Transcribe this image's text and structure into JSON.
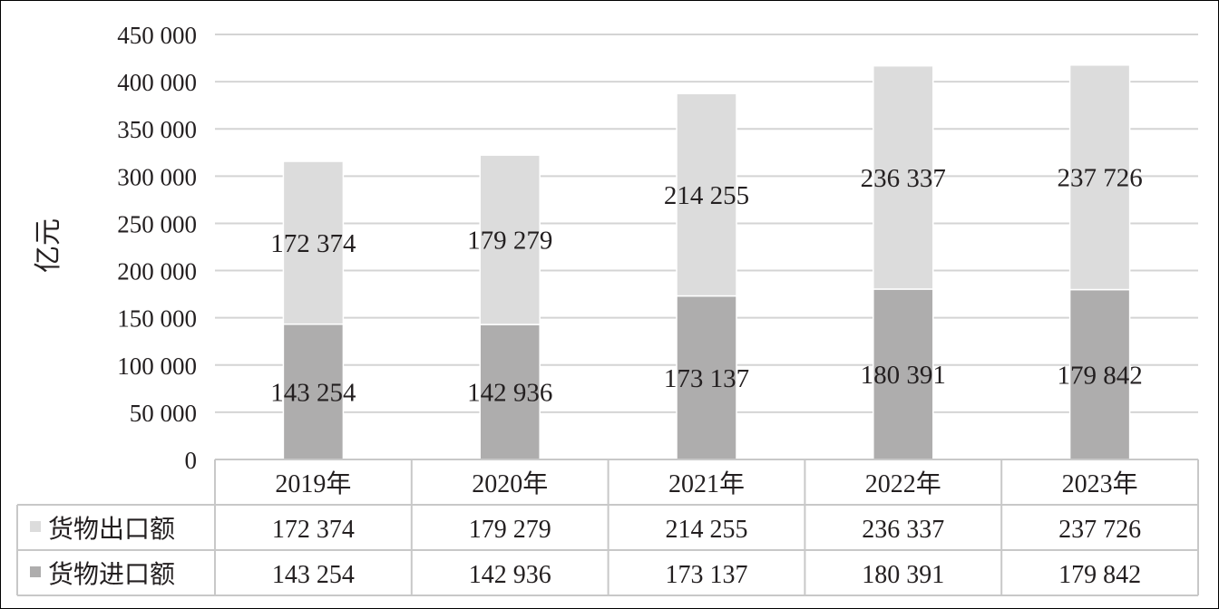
{
  "chart_data": {
    "type": "bar",
    "stacked": true,
    "ylabel": "亿元",
    "ylim": [
      0,
      450000
    ],
    "yticks": [
      0,
      50000,
      100000,
      150000,
      200000,
      250000,
      300000,
      350000,
      400000,
      450000
    ],
    "ytick_labels": [
      "0",
      "50 000",
      "100 000",
      "150 000",
      "200 000",
      "250 000",
      "300 000",
      "350 000",
      "400 000",
      "450 000"
    ],
    "categories": [
      "2019年",
      "2020年",
      "2021年",
      "2022年",
      "2023年"
    ],
    "grid": true,
    "legend": "data-table",
    "series": [
      {
        "name": "货物进口额",
        "color": "#aeadad",
        "values": [
          143254,
          142936,
          173137,
          180391,
          179842
        ],
        "labels": [
          "143 254",
          "142 936",
          "173 137",
          "180 391",
          "179 842"
        ]
      },
      {
        "name": "货物出口额",
        "color": "#dcdcdc",
        "values": [
          172374,
          179279,
          214255,
          236337,
          237726
        ],
        "labels": [
          "172 374",
          "179 279",
          "214 255",
          "236 337",
          "237 726"
        ]
      }
    ],
    "table_order": [
      1,
      0
    ]
  }
}
